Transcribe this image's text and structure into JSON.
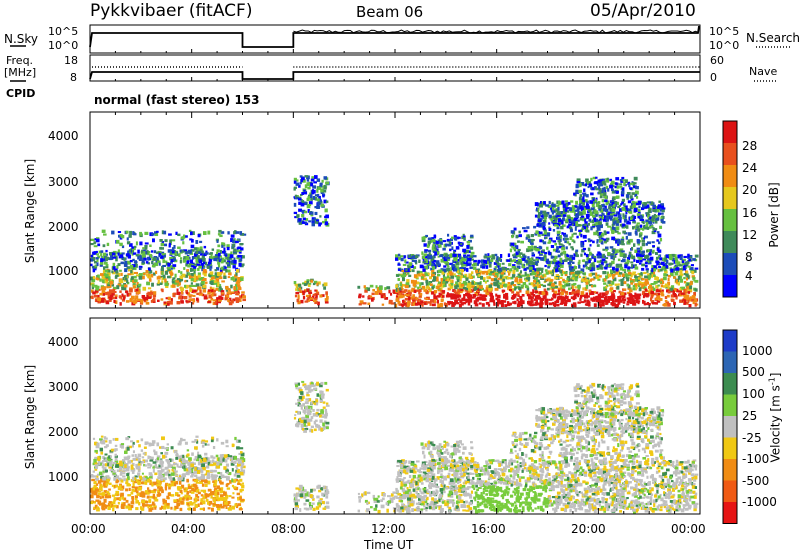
{
  "header": {
    "station": "Pykkvibaer (fitACF)",
    "beam": "Beam 06",
    "date": "05/Apr/2010"
  },
  "info_panels": {
    "nsky_label": "N.Sky",
    "nsky_ticks": [
      "10^5",
      "10^0"
    ],
    "nsearch_label": "N.Search",
    "nsearch_ticks": [
      "10^5",
      "10^0"
    ],
    "freq_label_line1": "Freq.",
    "freq_label_line2": "[MHz]",
    "freq_ticks": [
      "18",
      "8"
    ],
    "nave_label": "Nave",
    "nave_ticks": [
      "60",
      "0"
    ],
    "cpid_label": "CPID",
    "cpid_text": "normal (fast stereo) 153"
  },
  "colors": {
    "power_scale": [
      "#0000ff",
      "#1c4cb8",
      "#3f8a5a",
      "#66c040",
      "#e6c81e",
      "#f08c14",
      "#e8501e",
      "#dc1414"
    ],
    "velocity_scale": [
      "#1e3cc8",
      "#2d66b4",
      "#3c8c50",
      "#78cc3c",
      "#c0c0c0",
      "#f0c814",
      "#f08c14",
      "#f05a14",
      "#e61414"
    ],
    "velocity_gray": "#c0c0c0"
  },
  "chart_data": [
    {
      "type": "heatmap",
      "name": "power",
      "ylabel": "Slant Range [km]",
      "yticks": [
        "4000",
        "3000",
        "2000",
        "1000"
      ],
      "ylim": [
        180,
        4600
      ],
      "xlim_hours": [
        0,
        24
      ],
      "colorbar_label": "Power [dB]",
      "colorbar_ticks": [
        "28",
        "24",
        "20",
        "16",
        "12",
        "8",
        "4"
      ],
      "colorbar_range": [
        0,
        32
      ]
    },
    {
      "type": "heatmap",
      "name": "velocity",
      "ylabel": "Slant Range [km]",
      "yticks": [
        "4000",
        "3000",
        "2000",
        "1000"
      ],
      "ylim": [
        180,
        4600
      ],
      "xlim_hours": [
        0,
        24
      ],
      "colorbar_label": "Velocity [m s",
      "colorbar_label_sup": "-1",
      "colorbar_label_end": "]",
      "colorbar_ticks": [
        "1000",
        "500",
        "100",
        "25",
        "-25",
        "-100",
        "-500",
        "-1000"
      ]
    }
  ],
  "time_axis": {
    "ticks": [
      "00:00",
      "04:00",
      "08:00",
      "12:00",
      "16:00",
      "20:00",
      "00:00"
    ],
    "xlabel": "Time UT"
  }
}
